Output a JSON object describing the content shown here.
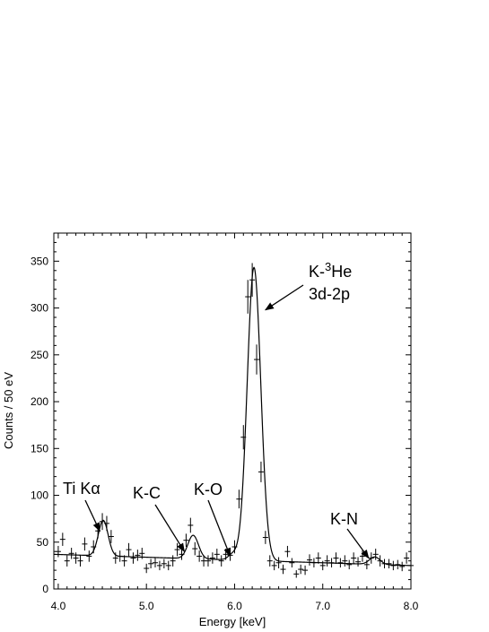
{
  "chart_data": {
    "type": "scatter",
    "title": "",
    "xlabel": "Energy [keV]",
    "ylabel": "Counts / 50 eV",
    "xlim": [
      3.95,
      8.0
    ],
    "ylim": [
      0,
      380
    ],
    "x_ticks": [
      4.0,
      5.0,
      6.0,
      7.0,
      8.0
    ],
    "x_tick_labels": [
      "4.0",
      "5.0",
      "6.0",
      "7.0",
      "8.0"
    ],
    "y_ticks": [
      0,
      50,
      100,
      150,
      200,
      250,
      300,
      350
    ],
    "y_tick_labels": [
      "0",
      "50",
      "100",
      "150",
      "200",
      "250",
      "300",
      "350"
    ],
    "grid": false,
    "series": [
      {
        "style": "points-with-error-bars",
        "x": [
          4.0,
          4.05,
          4.1,
          4.15,
          4.2,
          4.25,
          4.3,
          4.35,
          4.4,
          4.45,
          4.5,
          4.55,
          4.6,
          4.65,
          4.7,
          4.75,
          4.8,
          4.85,
          4.9,
          4.95,
          5.0,
          5.05,
          5.1,
          5.15,
          5.2,
          5.25,
          5.3,
          5.35,
          5.4,
          5.45,
          5.5,
          5.55,
          5.6,
          5.65,
          5.7,
          5.75,
          5.8,
          5.85,
          5.9,
          5.95,
          6.0,
          6.05,
          6.1,
          6.15,
          6.2,
          6.25,
          6.3,
          6.35,
          6.4,
          6.45,
          6.5,
          6.55,
          6.6,
          6.65,
          6.7,
          6.75,
          6.8,
          6.85,
          6.9,
          6.95,
          7.0,
          7.05,
          7.1,
          7.15,
          7.2,
          7.25,
          7.3,
          7.35,
          7.4,
          7.45,
          7.5,
          7.55,
          7.6,
          7.65,
          7.7,
          7.75,
          7.8,
          7.85,
          7.9,
          7.95,
          8.0
        ],
        "y": [
          40,
          53,
          30,
          38,
          33,
          30,
          48,
          35,
          45,
          62,
          72,
          70,
          56,
          33,
          35,
          30,
          42,
          33,
          36,
          38,
          22,
          27,
          28,
          25,
          27,
          25,
          30,
          42,
          37,
          52,
          68,
          43,
          35,
          30,
          30,
          33,
          37,
          30,
          37,
          36,
          45,
          96,
          162,
          312,
          330,
          245,
          125,
          55,
          30,
          25,
          28,
          21,
          40,
          28,
          16,
          21,
          20,
          31,
          28,
          33,
          25,
          30,
          28,
          33,
          28,
          30,
          26,
          33,
          29,
          35,
          26,
          33,
          37,
          30,
          27,
          27,
          25,
          26,
          24,
          33,
          25
        ],
        "yerr": [
          6,
          7,
          6,
          6,
          6,
          6,
          7,
          6,
          7,
          8,
          9,
          8,
          7,
          6,
          6,
          6,
          7,
          6,
          6,
          6,
          5,
          5,
          5,
          5,
          5,
          5,
          6,
          7,
          6,
          7,
          8,
          7,
          6,
          6,
          6,
          6,
          6,
          6,
          6,
          6,
          7,
          10,
          13,
          18,
          18,
          16,
          11,
          7,
          6,
          5,
          6,
          5,
          6,
          5,
          4,
          5,
          5,
          6,
          5,
          6,
          5,
          6,
          5,
          6,
          5,
          6,
          5,
          6,
          5,
          6,
          5,
          6,
          6,
          6,
          5,
          5,
          5,
          5,
          5,
          6,
          5
        ]
      },
      {
        "style": "fit-line",
        "background": {
          "at_x_min": 37,
          "at_x_max": 25
        },
        "peaks": [
          {
            "center": 4.51,
            "amplitude": 38,
            "sigma": 0.055
          },
          {
            "center": 5.53,
            "amplitude": 25,
            "sigma": 0.06
          },
          {
            "center": 5.98,
            "amplitude": 6,
            "sigma": 0.05
          },
          {
            "center": 6.22,
            "amplitude": 313,
            "sigma": 0.077
          },
          {
            "center": 7.59,
            "amplitude": 8,
            "sigma": 0.06
          }
        ]
      }
    ],
    "annotations": [
      {
        "id": "tika",
        "lines": [
          "Ti Kα"
        ],
        "arrow_to": [
          4.47,
          62
        ]
      },
      {
        "id": "kc",
        "lines": [
          "K-C"
        ],
        "arrow_to": [
          5.43,
          40
        ]
      },
      {
        "id": "ko",
        "lines": [
          "K-O"
        ],
        "arrow_to": [
          5.95,
          35
        ]
      },
      {
        "id": "khe",
        "lines": [
          "K-³He",
          "3d-2p"
        ],
        "arrow_to": [
          6.35,
          298
        ]
      },
      {
        "id": "kn",
        "lines": [
          "K-N"
        ],
        "arrow_to": [
          7.52,
          33
        ]
      }
    ]
  }
}
